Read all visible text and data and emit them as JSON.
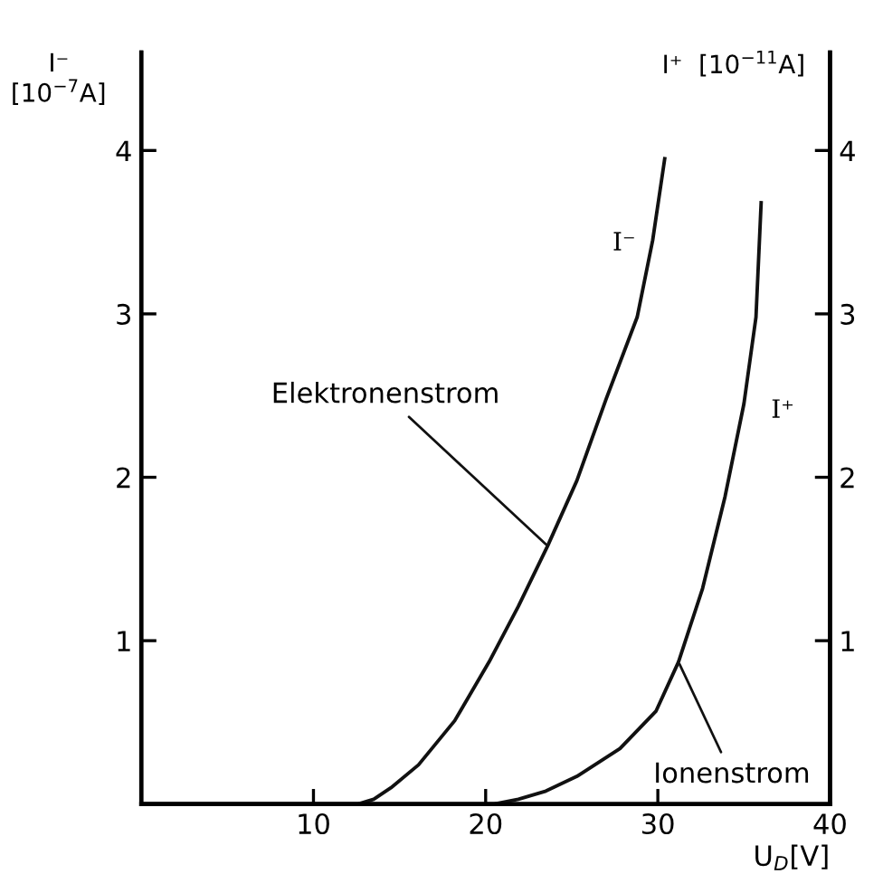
{
  "chart_data": {
    "type": "line",
    "xlabel": "U$_{D}$[V]",
    "ylabel": "I⁻\n[10$^{−7}$A]",
    "y2label": "I⁺  [10$^{−11}$A]",
    "xlim": [
      0,
      40
    ],
    "xticks": [
      10,
      20,
      30,
      40
    ],
    "ylim": [
      0,
      4.6
    ],
    "yticks": [
      1,
      2,
      3,
      4
    ],
    "y2lim": [
      0,
      4.6
    ],
    "y2ticks": [
      1,
      2,
      3,
      4
    ],
    "grid": false,
    "legend": false,
    "marker": "none",
    "line_style": "solid",
    "series": [
      {
        "name": "I⁻",
        "color": "#111111",
        "x": [
          0,
          10,
          12.6,
          13.5,
          14.5,
          16.1,
          18.2,
          20.2,
          21.9,
          23.6,
          25.3,
          27.0,
          28.8,
          29.7,
          30.4
        ],
        "values": [
          0,
          0,
          0,
          0.03,
          0.1,
          0.24,
          0.51,
          0.87,
          1.21,
          1.58,
          1.98,
          2.48,
          2.98,
          3.45,
          3.95
        ]
      },
      {
        "name": "I⁺",
        "color": "#111111",
        "axis": "y2",
        "x": [
          0,
          10,
          20.5,
          21.9,
          23.5,
          25.3,
          27.8,
          29.9,
          31.2,
          32.6,
          33.9,
          35.0,
          35.7,
          36.0
        ],
        "values": [
          0,
          0,
          0,
          0.03,
          0.08,
          0.17,
          0.34,
          0.57,
          0.87,
          1.32,
          1.88,
          2.45,
          2.98,
          3.68
        ]
      }
    ],
    "annotations": [
      {
        "text": "Elektronenstrom",
        "x": 23.6,
        "y": 1.58
      },
      {
        "text": "Ionenstrom",
        "x": 31.2,
        "y": 0.87
      }
    ]
  }
}
